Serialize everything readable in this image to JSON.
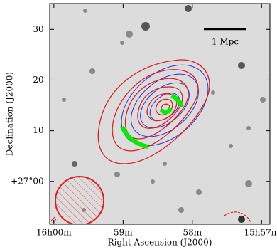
{
  "chart_data": {
    "type": "image",
    "xlabel": "Right Ascension (J2000)",
    "ylabel": "Declination (J2000)",
    "annotation": "1 Mpc",
    "xlim": [
      960.06,
      956.88
    ],
    "ylim": [
      26.859,
      27.585
    ],
    "xticks": [
      {
        "value": 960,
        "label": "16h00m"
      },
      {
        "value": 959,
        "label": "59m"
      },
      {
        "value": 958,
        "label": "58m"
      },
      {
        "value": 957,
        "label": "15h57m"
      }
    ],
    "yticks": [
      {
        "value": 27,
        "label": "+27°00'"
      },
      {
        "value": 27.1667,
        "label": "10'"
      },
      {
        "value": 27.3333,
        "label": "20'"
      },
      {
        "value": 27.5,
        "label": "30'"
      }
    ]
  }
}
